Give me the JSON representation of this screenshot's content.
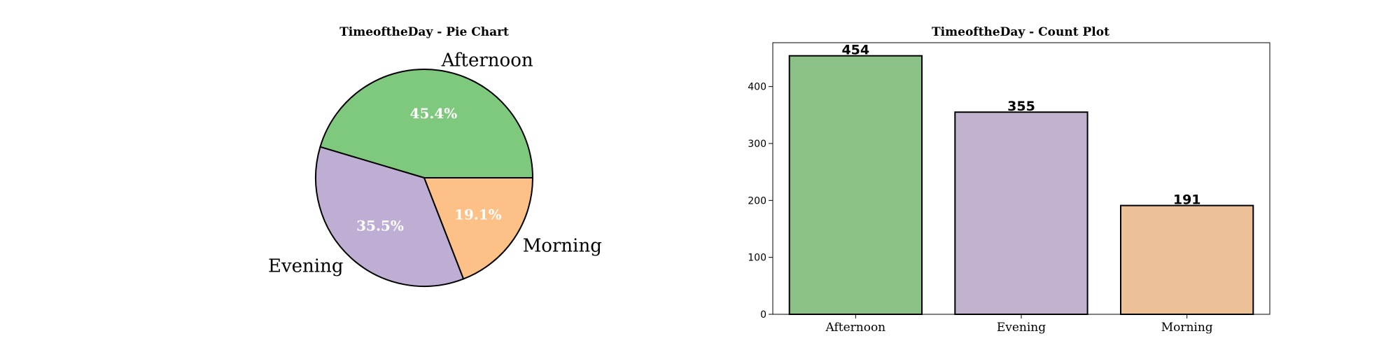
{
  "chart_data": [
    {
      "type": "pie",
      "title": "TimeoftheDay - Pie Chart",
      "categories": [
        "Afternoon",
        "Evening",
        "Morning"
      ],
      "values": [
        45.4,
        35.5,
        19.1
      ],
      "value_labels": [
        "45.4%",
        "35.5%",
        "19.1%"
      ],
      "colors": [
        "#7fc97f",
        "#beaed4",
        "#fdc086"
      ],
      "start_angle": 0,
      "direction": "counterclockwise"
    },
    {
      "type": "bar",
      "title": "TimeoftheDay - Count Plot",
      "categories": [
        "Afternoon",
        "Evening",
        "Morning"
      ],
      "values": [
        454,
        355,
        191
      ],
      "value_labels": [
        "454",
        "355",
        "191"
      ],
      "colors": [
        "#8bc087",
        "#c0b1cf",
        "#ecc197"
      ],
      "xlabel": "",
      "ylabel": "",
      "ylim": [
        0,
        477
      ],
      "yticks": [
        0,
        100,
        200,
        300,
        400
      ],
      "ytick_labels": [
        "0",
        "100",
        "200",
        "300",
        "400"
      ],
      "grid": false
    }
  ]
}
